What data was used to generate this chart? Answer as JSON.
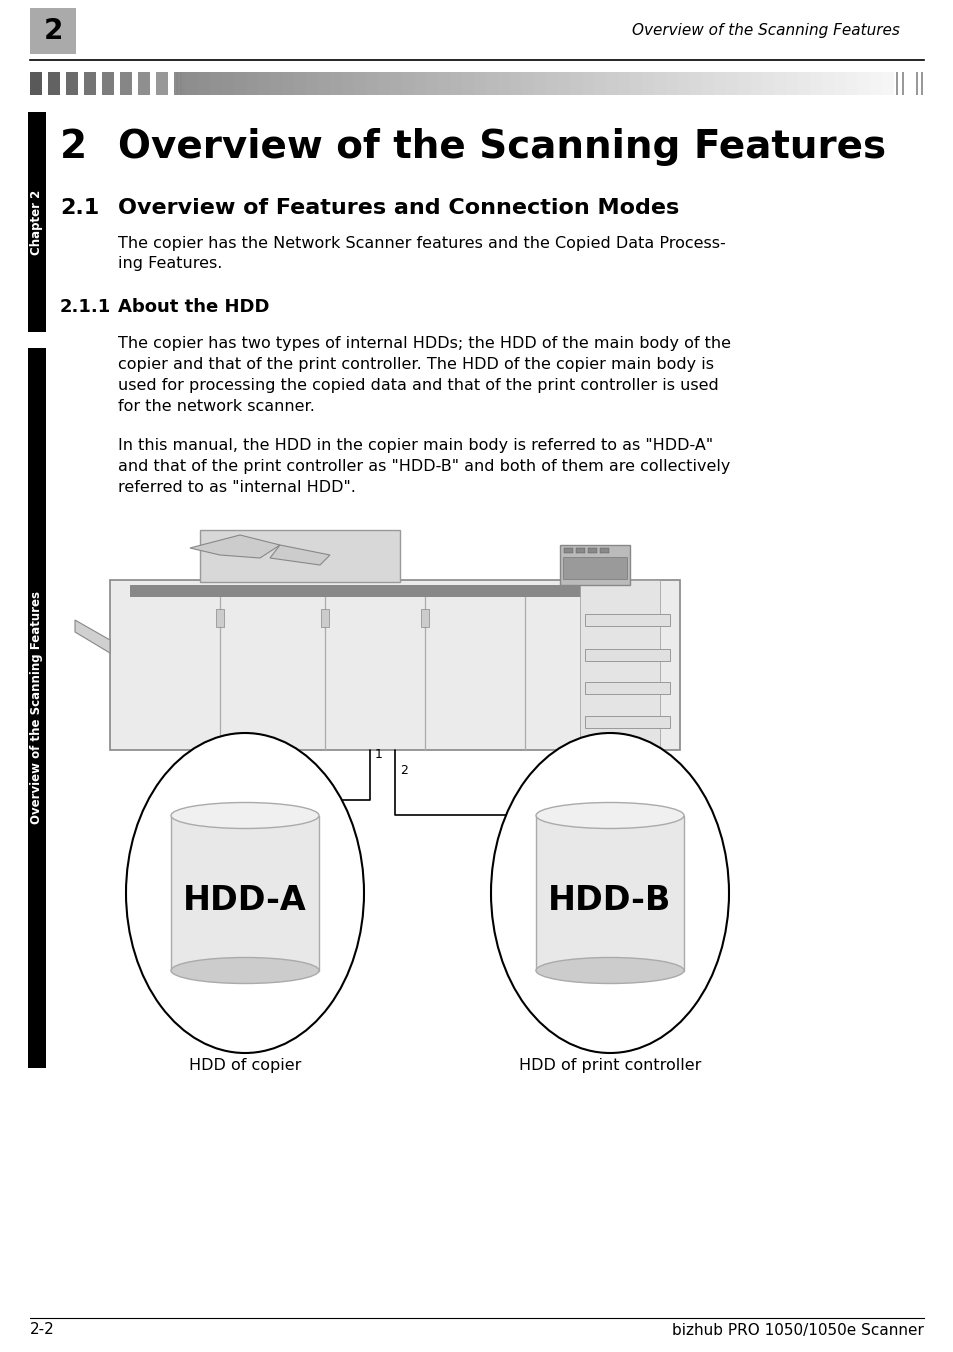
{
  "page_bg": "#ffffff",
  "header_chapter_num": "2",
  "header_title": "Overview of the Scanning Features",
  "chapter_title_num": "2",
  "chapter_title": "Overview of the Scanning Features",
  "section_num": "2.1",
  "section_title": "Overview of Features and Connection Modes",
  "section_body_line1": "The copier has the Network Scanner features and the Copied Data Process-",
  "section_body_line2": "ing Features.",
  "subsection_num": "2.1.1",
  "subsection_title": "About the HDD",
  "para1_lines": [
    "The copier has two types of internal HDDs; the HDD of the main body of the",
    "copier and that of the print controller. The HDD of the copier main body is",
    "used for processing the copied data and that of the print controller is used",
    "for the network scanner."
  ],
  "para2_lines": [
    "In this manual, the HDD in the copier main body is referred to as \"HDD-A\"",
    "and that of the print controller as \"HDD-B\" and both of them are collectively",
    "referred to as \"internal HDD\"."
  ],
  "hdd_a_label": "HDD-A",
  "hdd_b_label": "HDD-B",
  "hdd_a_caption": "HDD of copier",
  "hdd_b_caption": "HDD of print controller",
  "sidebar_chapter": "Chapter 2",
  "sidebar_section": "Overview of the Scanning Features",
  "footer_left": "2-2",
  "footer_right": "bizhub PRO 1050/1050e Scanner"
}
